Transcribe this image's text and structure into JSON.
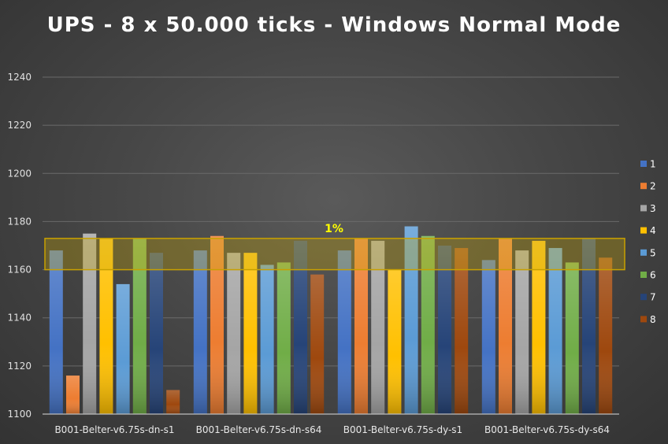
{
  "chart_data": {
    "type": "bar",
    "title": "UPS - 8 x 50.000 ticks - Windows Normal Mode",
    "categories": [
      "B001-Belter-v6.75s-dn-s1",
      "B001-Belter-v6.75s-dn-s64",
      "B001-Belter-v6.75s-dy-s1",
      "B001-Belter-v6.75s-dy-s64"
    ],
    "ylim": [
      1100,
      1240
    ],
    "yticks": [
      1100,
      1120,
      1140,
      1160,
      1180,
      1200,
      1220,
      1240
    ],
    "grid": true,
    "legend_position": "right",
    "series": [
      {
        "name": "1",
        "color": "#4472C4",
        "values": [
          1168,
          1168,
          1168,
          1164
        ]
      },
      {
        "name": "2",
        "color": "#ED7D31",
        "values": [
          1116,
          1174,
          1173,
          1173
        ]
      },
      {
        "name": "3",
        "color": "#A5A5A5",
        "values": [
          1175,
          1167,
          1172,
          1168
        ]
      },
      {
        "name": "4",
        "color": "#FFC000",
        "values": [
          1173,
          1167,
          1160,
          1172
        ]
      },
      {
        "name": "5",
        "color": "#5B9BD5",
        "values": [
          1154,
          1162,
          1178,
          1169
        ]
      },
      {
        "name": "6",
        "color": "#70AD47",
        "values": [
          1173,
          1163,
          1174,
          1163
        ]
      },
      {
        "name": "7",
        "color": "#264478",
        "values": [
          1167,
          1172,
          1170,
          1173
        ]
      },
      {
        "name": "8",
        "color": "#9E480E",
        "values": [
          1110,
          1158,
          1169,
          1165
        ]
      }
    ],
    "band": {
      "label": "1%",
      "from": 1160,
      "to": 1173
    }
  }
}
